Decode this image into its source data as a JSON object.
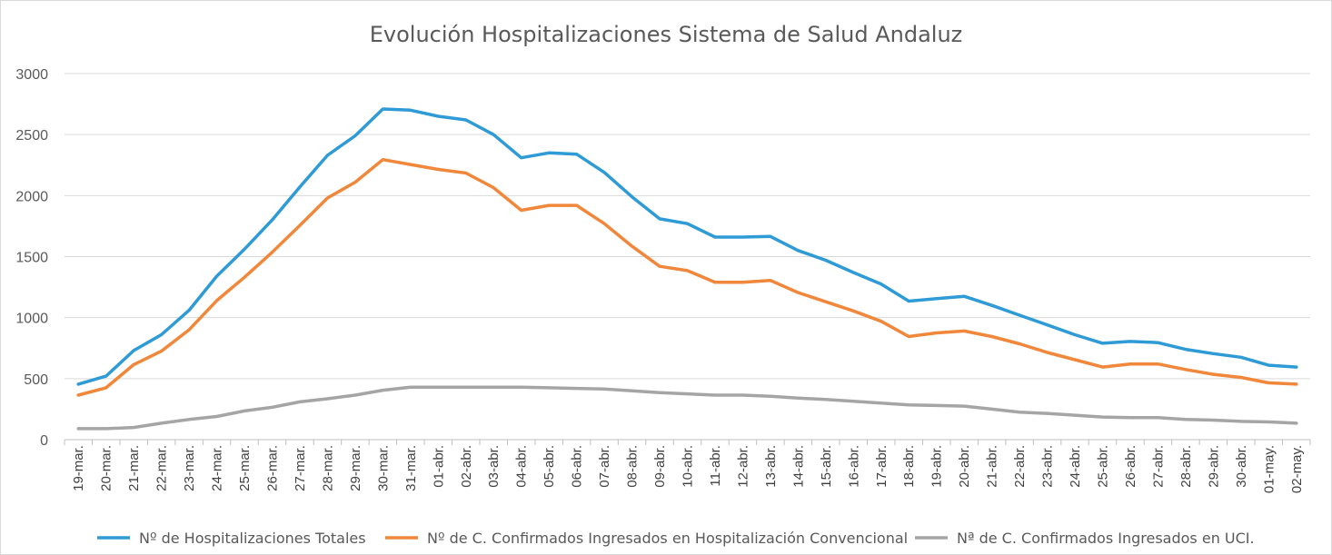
{
  "chart_data": {
    "type": "line",
    "title": "Evolución Hospitalizaciones Sistema de Salud Andaluz",
    "xlabel": "",
    "ylabel": "",
    "ylim": [
      0,
      3000
    ],
    "yticks": [
      0,
      500,
      1000,
      1500,
      2000,
      2500,
      3000
    ],
    "grid": true,
    "legend_position": "bottom",
    "categories": [
      "19-mar.",
      "20-mar.",
      "21-mar.",
      "22-mar.",
      "23-mar.",
      "24-mar.",
      "25-mar.",
      "26-mar.",
      "27-mar.",
      "28-mar.",
      "29-mar.",
      "30-mar.",
      "31-mar.",
      "01-abr.",
      "02-abr.",
      "03-abr.",
      "04-abr.",
      "05-abr.",
      "06-abr.",
      "07-abr.",
      "08-abr.",
      "09-abr.",
      "10-abr.",
      "11-abr.",
      "12-abr.",
      "13-abr.",
      "14-abr.",
      "15-abr.",
      "16-abr.",
      "17-abr.",
      "18-abr.",
      "19-abr.",
      "20-abr.",
      "21-abr.",
      "22-abr.",
      "23-abr.",
      "24-abr.",
      "25-abr.",
      "26-abr.",
      "27-abr.",
      "28-abr.",
      "29-abr.",
      "30-abr.",
      "01-may.",
      "02-may."
    ],
    "series": [
      {
        "name": "Nº de Hospitalizaciones Totales",
        "color": "#2E9BD6",
        "values": [
          455,
          520,
          730,
          860,
          1060,
          1340,
          1560,
          1800,
          2070,
          2330,
          2490,
          2710,
          2700,
          2650,
          2620,
          2500,
          2310,
          2350,
          2340,
          2190,
          1990,
          1810,
          1770,
          1660,
          1660,
          1665,
          1550,
          1470,
          1370,
          1275,
          1135,
          1155,
          1175,
          1100,
          1020,
          940,
          860,
          790,
          805,
          795,
          740,
          705,
          675,
          610,
          595
        ]
      },
      {
        "name": "Nº de C. Confirmados Ingresados en Hospitalización Convencional",
        "color": "#F0873A",
        "values": [
          365,
          425,
          615,
          725,
          900,
          1140,
          1330,
          1535,
          1755,
          1980,
          2110,
          2295,
          2255,
          2215,
          2185,
          2065,
          1880,
          1920,
          1920,
          1770,
          1585,
          1420,
          1385,
          1290,
          1290,
          1305,
          1205,
          1130,
          1055,
          970,
          845,
          875,
          890,
          845,
          785,
          715,
          655,
          595,
          620,
          620,
          575,
          535,
          510,
          465,
          455
        ]
      },
      {
        "name": "Nª de C. Confirmados Ingresados en UCI.",
        "color": "#A5A5A5",
        "values": [
          90,
          90,
          100,
          135,
          165,
          190,
          235,
          265,
          310,
          335,
          365,
          405,
          430,
          430,
          430,
          430,
          430,
          425,
          420,
          415,
          400,
          385,
          375,
          365,
          365,
          355,
          340,
          330,
          315,
          300,
          285,
          280,
          275,
          250,
          225,
          215,
          200,
          185,
          180,
          180,
          165,
          160,
          150,
          145,
          135
        ]
      }
    ]
  }
}
